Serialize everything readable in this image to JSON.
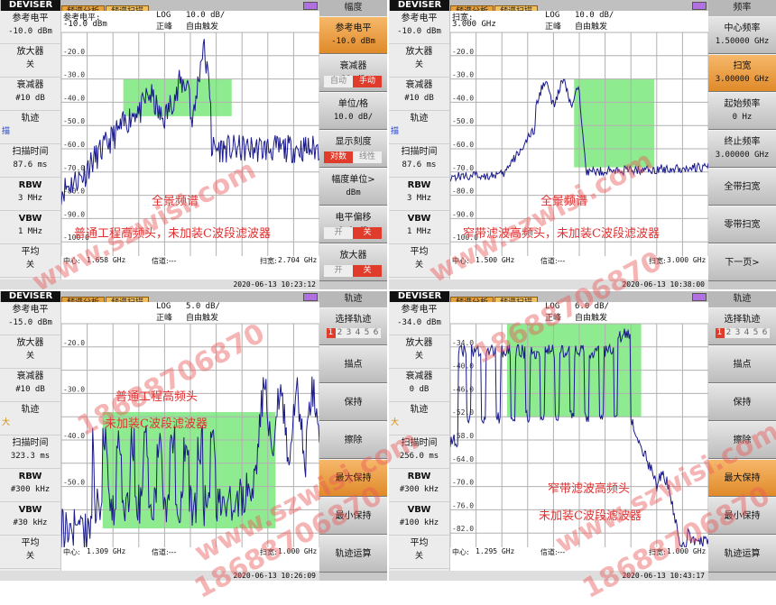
{
  "common": {
    "logo": "DEVISER",
    "tabs": [
      "频谱分析",
      "频谱扫描"
    ],
    "left_labels": {
      "ref": "参考电平",
      "amp": "放大器",
      "att": "衰减器",
      "trace": "轨迹",
      "sweep": "扫描时间",
      "rbw": "RBW",
      "vbw": "VBW",
      "avg": "平均"
    },
    "log": "LOG",
    "peak": "正峰",
    "free_run": "自由触发",
    "center_prefix": "中心:",
    "channel": "信道:---",
    "span_prefix": "扫宽:",
    "colors": {
      "trace": "#1a1a8a",
      "highlight": "#7be87b",
      "orange": "#e8902e",
      "toggle_on": "#e03c2c",
      "annotation": "#e03030"
    }
  },
  "quadrants": [
    {
      "panel_title": "幅度",
      "ref_value": "-10.0 dBm",
      "amp_value": "关",
      "att_value": "#10 dB",
      "trace_value": "描",
      "trace_color": "#2244cc",
      "sweep_value": "87.6 ms",
      "rbw_value": "3 MHz",
      "vbw_value": "1 MHz",
      "avg_value": "关",
      "hdr_ref_label": "参考电平:",
      "hdr_ref": "-10.0 dBm",
      "hdr_scale": "10.0 dB/",
      "y_ticks": [
        "-20.0",
        "-30.0",
        "-40.0",
        "-50.0",
        "-60.0",
        "-70.0",
        "-80.0",
        "-90.0",
        "-100.0"
      ],
      "center": "1.658 GHz",
      "span": "2.704 GHz",
      "timestamp": "2020-06-13 10:23:12",
      "annotations": [
        "全景频谱",
        "普通工程高频头，未加装C波段滤波器"
      ],
      "menu": [
        {
          "label": "参考电平",
          "value": "-10.0 dBm",
          "style": "orange"
        },
        {
          "label": "衰减器",
          "value": "10 dB",
          "toggle": [
            "自动",
            "手动"
          ],
          "on": 1
        },
        {
          "label": "单位/格",
          "value": "10.0 dB/"
        },
        {
          "label": "显示刻度",
          "toggle": [
            "对数",
            "线性"
          ],
          "on": 0
        },
        {
          "label": "幅度单位>",
          "value": "dBm"
        },
        {
          "label": "电平偏移",
          "value": "0.0 dB",
          "toggle": [
            "开",
            "关"
          ],
          "on": 1
        },
        {
          "label": "放大器",
          "toggle": [
            "开",
            "关"
          ],
          "on": 1
        }
      ]
    },
    {
      "panel_title": "频率",
      "ref_value": "-10.0 dBm",
      "amp_value": "关",
      "att_value": "#10 dB",
      "trace_value": "描",
      "trace_color": "#2244cc",
      "sweep_value": "87.6 ms",
      "rbw_value": "3 MHz",
      "vbw_value": "1 MHz",
      "avg_value": "关",
      "hdr_ref_label": "扫宽:",
      "hdr_ref": "3.000 GHz",
      "hdr_scale": "10.0 dB/",
      "y_ticks": [
        "-20.0",
        "-30.0",
        "-40.0",
        "-50.0",
        "-60.0",
        "-70.0",
        "-80.0",
        "-90.0",
        "-100.0"
      ],
      "center": "1.500 GHz",
      "span": "3.000 GHz",
      "timestamp": "2020-06-13 10:38:00",
      "annotations": [
        "全景频谱",
        "窄带滤波高频头，未加装C波段滤波器"
      ],
      "menu": [
        {
          "label": "中心频率",
          "value": "1.50000 GHz"
        },
        {
          "label": "扫宽",
          "value": "3.00000 GHz",
          "style": "orange"
        },
        {
          "label": "起始频率",
          "value": "0 Hz"
        },
        {
          "label": "终止频率",
          "value": "3.00000 GHz"
        },
        {
          "label": "全带扫宽"
        },
        {
          "label": "零带扫宽"
        },
        {
          "label": "下一页>"
        }
      ]
    },
    {
      "panel_title": "轨迹",
      "ref_value": "-15.0 dBm",
      "amp_value": "关",
      "att_value": "#10 dB",
      "trace_value": "大",
      "trace_color": "#d08a00",
      "sweep_value": "323.3 ms",
      "rbw_value": "#300 kHz",
      "vbw_value": "#30 kHz",
      "avg_value": "关",
      "hdr_ref_label": "",
      "hdr_ref": "",
      "hdr_scale": "5.0 dB/",
      "y_ticks": [
        "-20.0",
        "",
        "-30.0",
        "",
        "-40.0",
        "",
        "-50.0",
        "",
        ""
      ],
      "center": "1.309 GHz",
      "span": "1.000 GHz",
      "timestamp": "2020-06-13 10:26:09",
      "annotations": [
        "普通工程高频头",
        "未加装C波段滤波器"
      ],
      "menu": [
        {
          "label": "选择轨迹",
          "nums": [
            "1",
            "2",
            "3",
            "4",
            "5",
            "6"
          ],
          "on": 0
        },
        {
          "label": "描点"
        },
        {
          "label": "保持"
        },
        {
          "label": "擦除"
        },
        {
          "label": "最大保持",
          "style": "orange"
        },
        {
          "label": "最小保持"
        },
        {
          "label": "轨迹运算"
        }
      ]
    },
    {
      "panel_title": "轨迹",
      "ref_value": "-34.0 dBm",
      "amp_value": "关",
      "att_value": "0 dB",
      "trace_value": "大",
      "trace_color": "#d08a00",
      "sweep_value": "256.0 ms",
      "rbw_value": "#300 kHz",
      "vbw_value": "#100 kHz",
      "avg_value": "关",
      "hdr_ref_label": "",
      "hdr_ref": "",
      "hdr_scale": "6.0 dB/",
      "y_ticks": [
        "-34.0",
        "-40.0",
        "-46.0",
        "-52.0",
        "-58.0",
        "-64.0",
        "-70.0",
        "-76.0",
        "-82.0"
      ],
      "center": "1.295 GHz",
      "span": "1.000 GHz",
      "timestamp": "2020-06-13 10:43:17",
      "annotations": [
        "窄带滤波高频头",
        "未加装C波段滤波器"
      ],
      "menu": [
        {
          "label": "选择轨迹",
          "nums": [
            "1",
            "2",
            "3",
            "4",
            "5",
            "6"
          ],
          "on": 0
        },
        {
          "label": "描点"
        },
        {
          "label": "保持"
        },
        {
          "label": "擦除"
        },
        {
          "label": "最大保持",
          "style": "orange"
        },
        {
          "label": "最小保持"
        },
        {
          "label": "轨迹运算"
        }
      ]
    }
  ],
  "watermark": {
    "text_site": "www.szwisi.com",
    "text_phone": "18688706870"
  }
}
